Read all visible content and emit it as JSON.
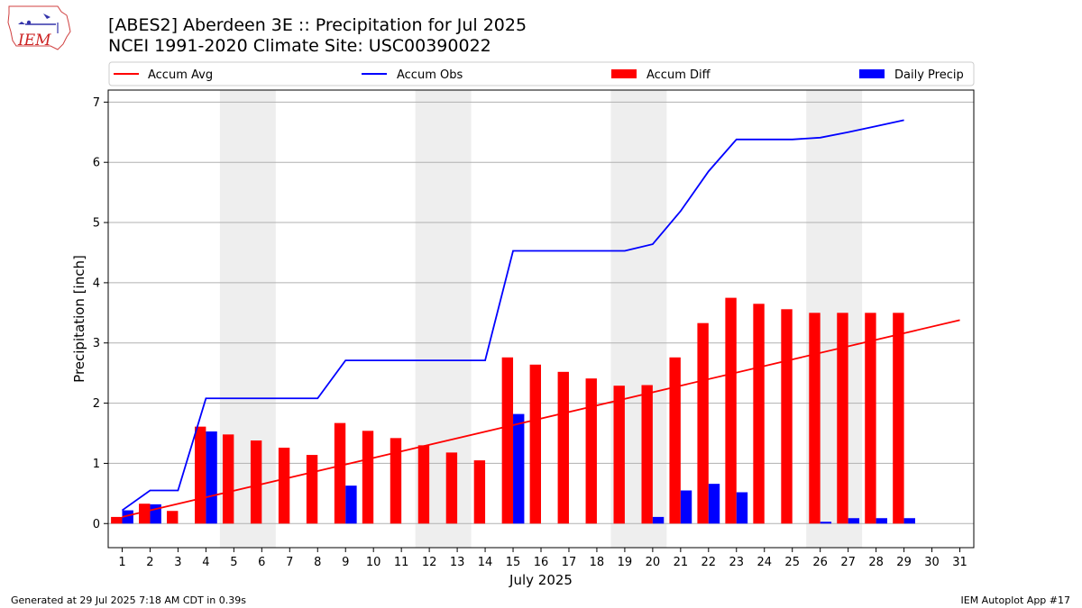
{
  "header": {
    "title_line1": "[ABES2] Aberdeen 3E :: Precipitation for Jul 2025",
    "title_line2": "NCEI 1991-2020 Climate Site: USC00390022"
  },
  "logo": {
    "text": "IEM"
  },
  "footer": {
    "left": "Generated at 29 Jul 2025 7:18 AM CDT in 0.39s",
    "right": "IEM Autoplot App #17"
  },
  "chart_data": {
    "type": "bar",
    "xlabel": "July 2025",
    "ylabel": "Precipitation [inch]",
    "ylim": [
      -0.4,
      7.2
    ],
    "xlim": [
      0.5,
      31.5
    ],
    "grid": true,
    "legend_position": "top",
    "legend": [
      "Accum Avg",
      "Accum Obs",
      "Accum Diff",
      "Daily Precip"
    ],
    "colors": {
      "accum_avg": "#ff0000",
      "accum_obs": "#0000ff",
      "accum_diff": "#ff0000",
      "daily_precip": "#0000ff",
      "weekend_shade": "#eeeeee",
      "grid": "#b0b0b0"
    },
    "weekend_spans": [
      [
        4.5,
        6.5
      ],
      [
        11.5,
        13.5
      ],
      [
        18.5,
        20.5
      ],
      [
        25.5,
        27.5
      ]
    ],
    "days": [
      1,
      2,
      3,
      4,
      5,
      6,
      7,
      8,
      9,
      10,
      11,
      12,
      13,
      14,
      15,
      16,
      17,
      18,
      19,
      20,
      21,
      22,
      23,
      24,
      25,
      26,
      27,
      28,
      29,
      30,
      31
    ],
    "yticks": [
      0,
      1,
      2,
      3,
      4,
      5,
      6,
      7
    ],
    "series": [
      {
        "name": "Accum Avg",
        "kind": "line",
        "x": [
          1,
          31
        ],
        "values": [
          0.11,
          3.38
        ]
      },
      {
        "name": "Accum Obs",
        "kind": "line",
        "x": [
          1,
          2,
          3,
          4,
          5,
          6,
          7,
          8,
          9,
          10,
          11,
          12,
          13,
          14,
          15,
          16,
          17,
          18,
          19,
          20,
          21,
          22,
          23,
          24,
          25,
          26,
          27,
          28,
          29
        ],
        "values": [
          0.22,
          0.55,
          0.55,
          2.08,
          2.08,
          2.08,
          2.08,
          2.08,
          2.71,
          2.71,
          2.71,
          2.71,
          2.71,
          2.71,
          4.53,
          4.53,
          4.53,
          4.53,
          4.53,
          4.64,
          5.19,
          5.85,
          6.38,
          6.38,
          6.38,
          6.41,
          6.5,
          6.6,
          6.7
        ]
      },
      {
        "name": "Accum Diff",
        "kind": "bar",
        "x": [
          1,
          2,
          3,
          4,
          5,
          6,
          7,
          8,
          9,
          10,
          11,
          12,
          13,
          14,
          15,
          16,
          17,
          18,
          19,
          20,
          21,
          22,
          23,
          24,
          25,
          26,
          27,
          28,
          29
        ],
        "values": [
          0.11,
          0.33,
          0.21,
          1.61,
          1.48,
          1.38,
          1.26,
          1.14,
          1.67,
          1.54,
          1.42,
          1.3,
          1.18,
          1.05,
          2.76,
          2.64,
          2.52,
          2.41,
          2.29,
          2.3,
          2.76,
          3.33,
          3.75,
          3.65,
          3.56,
          3.5,
          3.5,
          3.5,
          3.5
        ]
      },
      {
        "name": "Daily Precip",
        "kind": "bar",
        "x": [
          1,
          2,
          3,
          4,
          5,
          6,
          7,
          8,
          9,
          10,
          11,
          12,
          13,
          14,
          15,
          16,
          17,
          18,
          19,
          20,
          21,
          22,
          23,
          24,
          25,
          26,
          27,
          28,
          29
        ],
        "values": [
          0.22,
          0.32,
          0,
          1.53,
          0,
          0,
          0,
          0,
          0.63,
          0,
          0,
          0,
          0,
          0,
          1.82,
          0,
          0,
          0,
          0,
          0.11,
          0.55,
          0.66,
          0.52,
          0,
          0,
          0.03,
          0.09,
          0.09,
          0.09
        ]
      }
    ]
  }
}
